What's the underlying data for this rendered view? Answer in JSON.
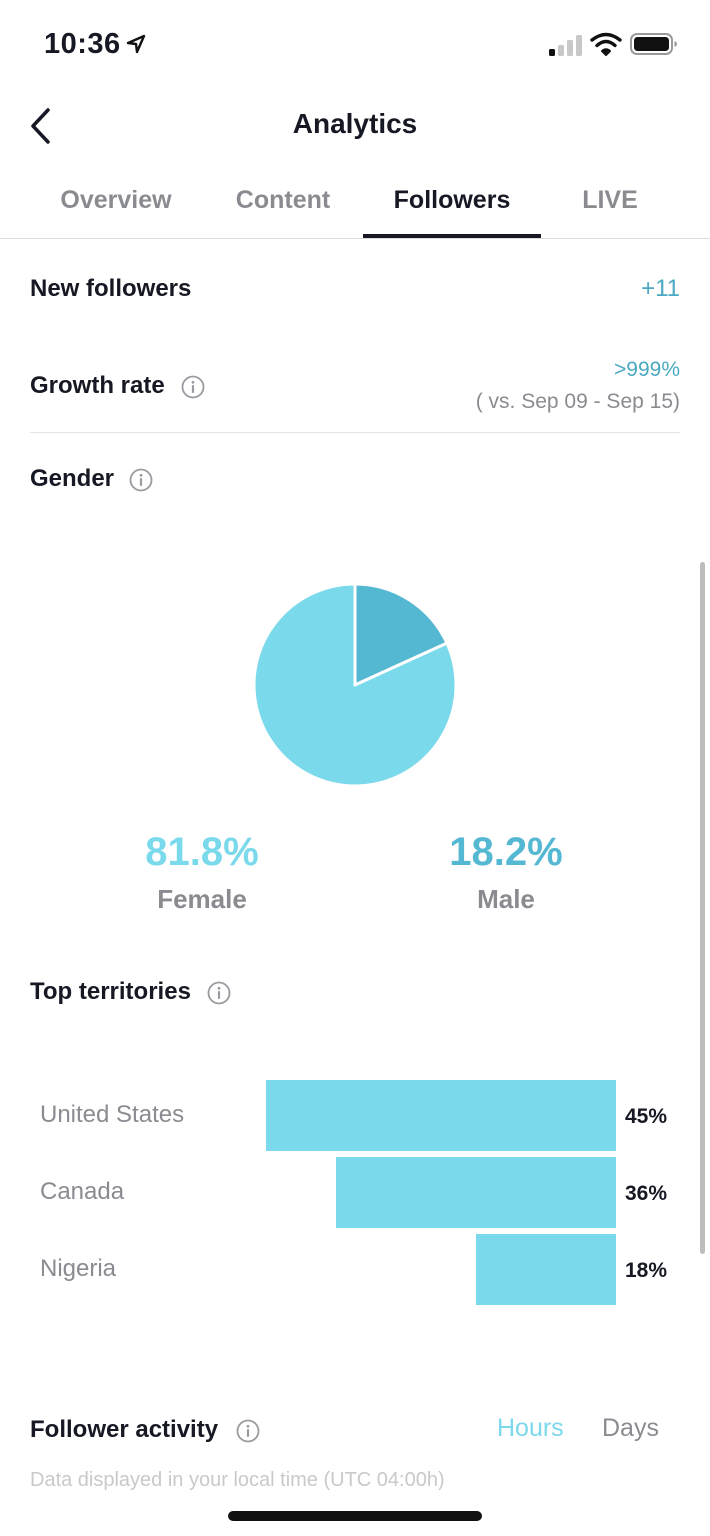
{
  "status_bar": {
    "time": "10:36"
  },
  "header": {
    "title": "Analytics"
  },
  "tabs": [
    {
      "label": "Overview"
    },
    {
      "label": "Content"
    },
    {
      "label": "Followers",
      "active": true
    },
    {
      "label": "LIVE"
    }
  ],
  "new_followers": {
    "label": "New followers",
    "value": "+11"
  },
  "growth_rate": {
    "label": "Growth rate",
    "value": ">999%",
    "comparison": "( vs. Sep 09 - Sep 15)"
  },
  "gender": {
    "label": "Gender",
    "female": {
      "percent": "81.8%",
      "label": "Female"
    },
    "male": {
      "percent": "18.2%",
      "label": "Male"
    }
  },
  "top_territories": {
    "label": "Top territories",
    "items": [
      {
        "name": "United States",
        "percent": "45%"
      },
      {
        "name": "Canada",
        "percent": "36%"
      },
      {
        "name": "Nigeria",
        "percent": "18%"
      }
    ]
  },
  "follower_activity": {
    "label": "Follower activity",
    "toggle_hours": "Hours",
    "toggle_days": "Days",
    "subtitle": "Data displayed in your local time (UTC 04:00h)"
  },
  "chart_data": {
    "type": "pie",
    "labels": [
      "Female",
      "Male"
    ],
    "values": [
      81.8,
      18.2
    ],
    "colors": [
      "#7bd9ec",
      "#55b8d2"
    ]
  },
  "territory_chart": {
    "type": "bar",
    "categories": [
      "United States",
      "Canada",
      "Nigeria"
    ],
    "values": [
      45,
      36,
      18
    ]
  },
  "colors": {
    "accent": "#4aa9c0",
    "bar": "#7bd9ec",
    "pie_male": "#55b8d2",
    "pie_female": "#7bd9ec"
  }
}
